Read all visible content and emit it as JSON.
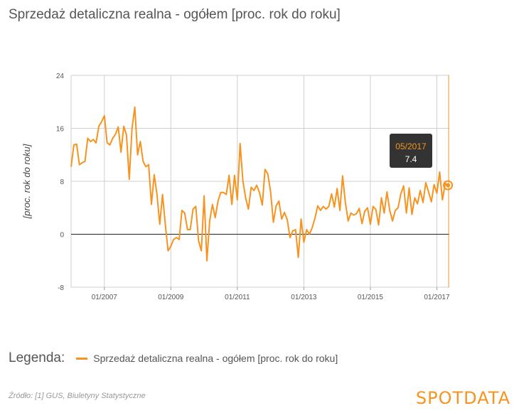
{
  "title": "Sprzedaż detaliczna realna - ogółem [proc. rok do roku]",
  "legend": {
    "heading": "Legenda:",
    "label": "Sprzedaż detaliczna realna - ogółem [proc. rok do roku]"
  },
  "source": "Źródło: [1] GUS, Biuletyny Statystyczne",
  "logo": "SPOTDATA",
  "colors": {
    "series": "#f7931e",
    "grid": "#cfcfcf",
    "zero": "#222222",
    "tooltip_bg": "#333333"
  },
  "tooltip": {
    "date": "05/2017",
    "value": "7.4"
  },
  "chart_data": {
    "type": "line",
    "ylabel": "[proc. rok do roku]",
    "ylim": [
      -8,
      24
    ],
    "yticks": [
      -8,
      0,
      8,
      16,
      24
    ],
    "x_start": "2006-01",
    "xlim_months": [
      0,
      136.5
    ],
    "xticks": [
      {
        "label": "01/2007",
        "month": 12
      },
      {
        "label": "01/2009",
        "month": 36
      },
      {
        "label": "01/2011",
        "month": 60
      },
      {
        "label": "01/2013",
        "month": 84
      },
      {
        "label": "01/2015",
        "month": 108
      },
      {
        "label": "01/2017",
        "month": 132
      }
    ],
    "series": [
      {
        "name": "Sprzedaż detaliczna realna - ogółem [proc. rok do roku]",
        "values": [
          10.2,
          13.5,
          13.6,
          10.5,
          10.8,
          11.0,
          14.5,
          14.0,
          14.3,
          13.8,
          16.3,
          17.0,
          17.9,
          13.8,
          13.5,
          14.5,
          15.1,
          16.2,
          12.4,
          16.3,
          15.0,
          8.3,
          16.0,
          19.2,
          12.0,
          14.0,
          11.0,
          10.2,
          10.5,
          4.5,
          9.0,
          6.0,
          1.5,
          6.0,
          1.5,
          -2.5,
          -1.8,
          -0.8,
          -0.5,
          -0.8,
          3.6,
          3.2,
          0.7,
          0.7,
          3.8,
          4.2,
          -1.0,
          -2.5,
          5.8,
          -4.0,
          2.0,
          4.5,
          2.5,
          5.0,
          6.3,
          6.3,
          6.0,
          8.9,
          4.5,
          8.9,
          5.2,
          13.7,
          8.1,
          5.5,
          3.8,
          7.1,
          6.6,
          7.4,
          6.3,
          4.4,
          9.8,
          9.1,
          6.4,
          1.8,
          4.3,
          5.0,
          2.3,
          3.3,
          2.2,
          -0.5,
          0.5,
          0.7,
          -3.5,
          2.3,
          -1.2,
          0.7,
          0.0,
          1.0,
          2.4,
          4.3,
          3.6,
          4.2,
          3.8,
          4.2,
          6.1,
          4.1,
          6.9,
          3.6,
          8.8,
          4.8,
          2.0,
          3.2,
          2.9,
          3.1,
          3.9,
          1.6,
          3.5,
          4.0,
          1.5,
          4.2,
          3.7,
          1.4,
          5.5,
          3.2,
          6.4,
          3.6,
          2.0,
          3.6,
          4.0,
          6.1,
          7.3,
          3.2,
          7.0,
          3.0,
          5.5,
          4.6,
          6.6,
          4.8,
          7.8,
          6.4,
          4.9,
          7.5,
          6.2,
          9.4,
          5.2,
          7.7,
          7.4
        ]
      }
    ]
  }
}
